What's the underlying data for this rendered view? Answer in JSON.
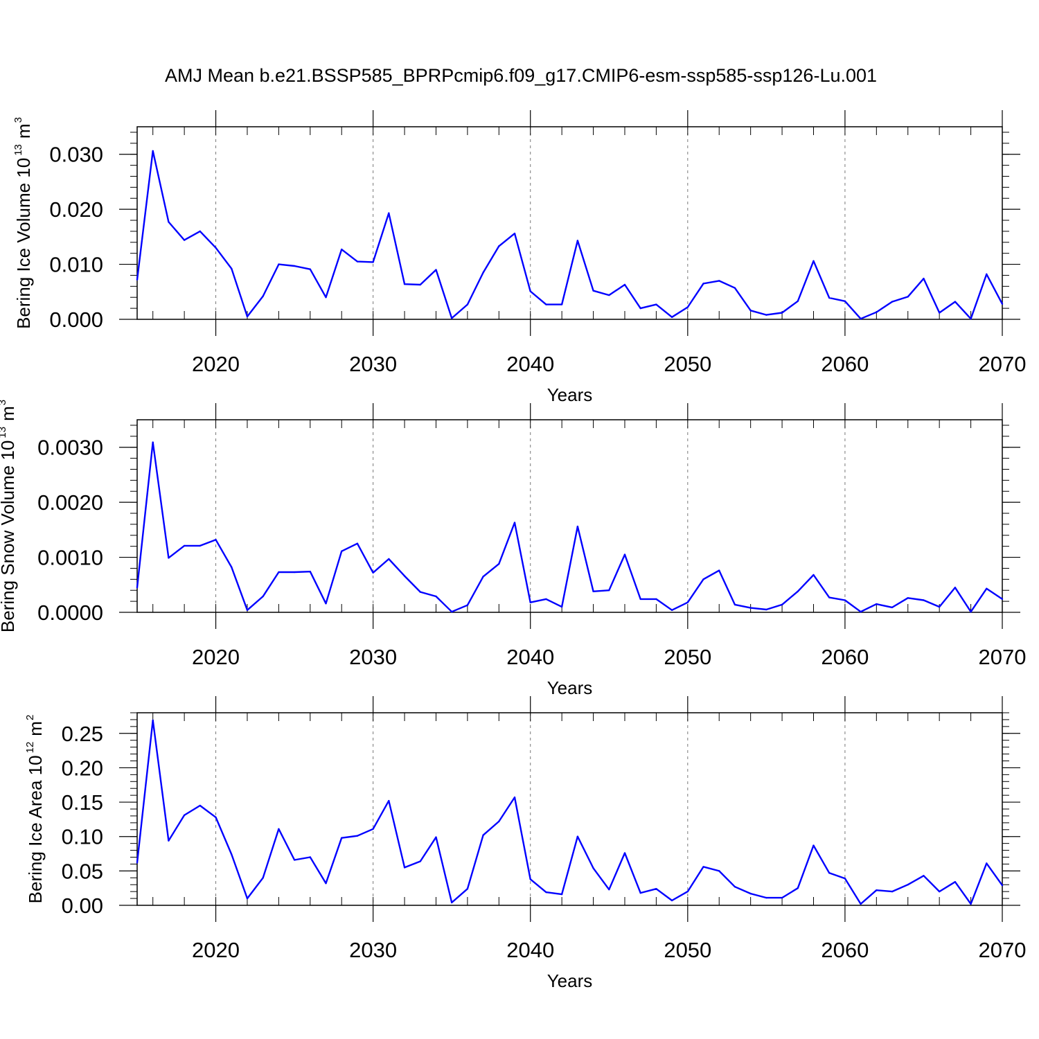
{
  "chart_data": [
    {
      "type": "line",
      "title": "AMJ Mean b.e21.BSSP585_BPRPcmip6.f09_g17.CMIP6-esm-ssp585-ssp126-Lu.001",
      "xlabel": "Years",
      "ylabel": {
        "prefix": "Bering Ice Volume 10",
        "exponent": "13",
        "unit": "m",
        "unit_exponent": "3"
      },
      "xlim": [
        2015,
        2070
      ],
      "ylim": [
        0.0,
        0.035
      ],
      "xticks": [
        "2020",
        "2030",
        "2040",
        "2050",
        "2060",
        "2070"
      ],
      "yticks": [
        {
          "value": 0.0,
          "label": "0.000"
        },
        {
          "value": 0.01,
          "label": "0.010"
        },
        {
          "value": 0.02,
          "label": "0.020"
        },
        {
          "value": 0.03,
          "label": "0.030"
        }
      ],
      "grid": "vertical dashed at major x ticks",
      "line_color": "#0000ff",
      "x": [
        2015,
        2016,
        2017,
        2018,
        2019,
        2020,
        2021,
        2022,
        2023,
        2024,
        2025,
        2026,
        2027,
        2028,
        2029,
        2030,
        2031,
        2032,
        2033,
        2034,
        2035,
        2036,
        2037,
        2038,
        2039,
        2040,
        2041,
        2042,
        2043,
        2044,
        2045,
        2046,
        2047,
        2048,
        2049,
        2050,
        2051,
        2052,
        2053,
        2054,
        2055,
        2056,
        2057,
        2058,
        2059,
        2060,
        2061,
        2062,
        2063,
        2064,
        2065,
        2066,
        2067,
        2068,
        2069,
        2070
      ],
      "values": [
        0.0072,
        0.0306,
        0.0177,
        0.0144,
        0.016,
        0.013,
        0.0092,
        0.0005,
        0.0042,
        0.01,
        0.0097,
        0.0091,
        0.004,
        0.0127,
        0.0105,
        0.0104,
        0.0193,
        0.0064,
        0.0063,
        0.009,
        0.0002,
        0.0027,
        0.0085,
        0.0133,
        0.0156,
        0.0051,
        0.0027,
        0.0027,
        0.0143,
        0.0052,
        0.0044,
        0.0063,
        0.002,
        0.0027,
        0.0004,
        0.0022,
        0.0065,
        0.007,
        0.0057,
        0.0016,
        0.0008,
        0.0012,
        0.0033,
        0.0106,
        0.0039,
        0.0033,
        0.0001,
        0.0013,
        0.0032,
        0.0041,
        0.0074,
        0.0012,
        0.0032,
        0.0001,
        0.0082,
        0.0028
      ]
    },
    {
      "type": "line",
      "title": "",
      "xlabel": "Years",
      "ylabel": {
        "prefix": "Bering Snow Volume 10",
        "exponent": "13",
        "unit": "m",
        "unit_exponent": "3"
      },
      "xlim": [
        2015,
        2070
      ],
      "ylim": [
        0.0,
        0.0035
      ],
      "xticks": [
        "2020",
        "2030",
        "2040",
        "2050",
        "2060",
        "2070"
      ],
      "yticks": [
        {
          "value": 0.0,
          "label": "0.0000"
        },
        {
          "value": 0.001,
          "label": "0.0010"
        },
        {
          "value": 0.002,
          "label": "0.0020"
        },
        {
          "value": 0.003,
          "label": "0.0030"
        }
      ],
      "grid": "vertical dashed at major x ticks",
      "line_color": "#0000ff",
      "x": [
        2015,
        2016,
        2017,
        2018,
        2019,
        2020,
        2021,
        2022,
        2023,
        2024,
        2025,
        2026,
        2027,
        2028,
        2029,
        2030,
        2031,
        2032,
        2033,
        2034,
        2035,
        2036,
        2037,
        2038,
        2039,
        2040,
        2041,
        2042,
        2043,
        2044,
        2045,
        2046,
        2047,
        2048,
        2049,
        2050,
        2051,
        2052,
        2053,
        2054,
        2055,
        2056,
        2057,
        2058,
        2059,
        2060,
        2061,
        2062,
        2063,
        2064,
        2065,
        2066,
        2067,
        2068,
        2069,
        2070
      ],
      "values": [
        0.00045,
        0.00309,
        0.00099,
        0.00121,
        0.00121,
        0.00132,
        0.00082,
        4e-05,
        0.00029,
        0.00073,
        0.00073,
        0.00074,
        0.00016,
        0.00111,
        0.00125,
        0.00072,
        0.00097,
        0.00066,
        0.00037,
        0.00029,
        1e-05,
        0.00013,
        0.00065,
        0.00088,
        0.00163,
        0.00018,
        0.00024,
        0.0001,
        0.00156,
        0.00038,
        0.0004,
        0.00105,
        0.00024,
        0.00024,
        4e-05,
        0.00018,
        0.0006,
        0.00076,
        0.00014,
        8e-05,
        5e-05,
        0.00014,
        0.00038,
        0.00068,
        0.00027,
        0.00022,
        1e-05,
        0.00015,
        9e-05,
        0.00026,
        0.00022,
        0.0001,
        0.00045,
        1e-05,
        0.00043,
        0.00024
      ]
    },
    {
      "type": "line",
      "title": "",
      "xlabel": "Years",
      "ylabel": {
        "prefix": "Bering Ice Area 10",
        "exponent": "12",
        "unit": "m",
        "unit_exponent": "2"
      },
      "xlim": [
        2015,
        2070
      ],
      "ylim": [
        0.0,
        0.28
      ],
      "xticks": [
        "2020",
        "2030",
        "2040",
        "2050",
        "2060",
        "2070"
      ],
      "yticks": [
        {
          "value": 0.0,
          "label": "0.00"
        },
        {
          "value": 0.05,
          "label": "0.05"
        },
        {
          "value": 0.1,
          "label": "0.10"
        },
        {
          "value": 0.15,
          "label": "0.15"
        },
        {
          "value": 0.2,
          "label": "0.20"
        },
        {
          "value": 0.25,
          "label": "0.25"
        }
      ],
      "grid": "vertical dashed at major x ticks",
      "line_color": "#0000ff",
      "x": [
        2015,
        2016,
        2017,
        2018,
        2019,
        2020,
        2021,
        2022,
        2023,
        2024,
        2025,
        2026,
        2027,
        2028,
        2029,
        2030,
        2031,
        2032,
        2033,
        2034,
        2035,
        2036,
        2037,
        2038,
        2039,
        2040,
        2041,
        2042,
        2043,
        2044,
        2045,
        2046,
        2047,
        2048,
        2049,
        2050,
        2051,
        2052,
        2053,
        2054,
        2055,
        2056,
        2057,
        2058,
        2059,
        2060,
        2061,
        2062,
        2063,
        2064,
        2065,
        2066,
        2067,
        2068,
        2069,
        2070
      ],
      "values": [
        0.062,
        0.269,
        0.094,
        0.131,
        0.145,
        0.128,
        0.074,
        0.01,
        0.04,
        0.111,
        0.066,
        0.07,
        0.032,
        0.098,
        0.101,
        0.111,
        0.152,
        0.055,
        0.064,
        0.099,
        0.004,
        0.024,
        0.102,
        0.122,
        0.157,
        0.038,
        0.019,
        0.016,
        0.1,
        0.054,
        0.023,
        0.076,
        0.018,
        0.024,
        0.007,
        0.02,
        0.056,
        0.05,
        0.027,
        0.017,
        0.011,
        0.011,
        0.025,
        0.087,
        0.047,
        0.039,
        0.002,
        0.022,
        0.02,
        0.03,
        0.043,
        0.02,
        0.034,
        0.002,
        0.061,
        0.029
      ]
    }
  ]
}
